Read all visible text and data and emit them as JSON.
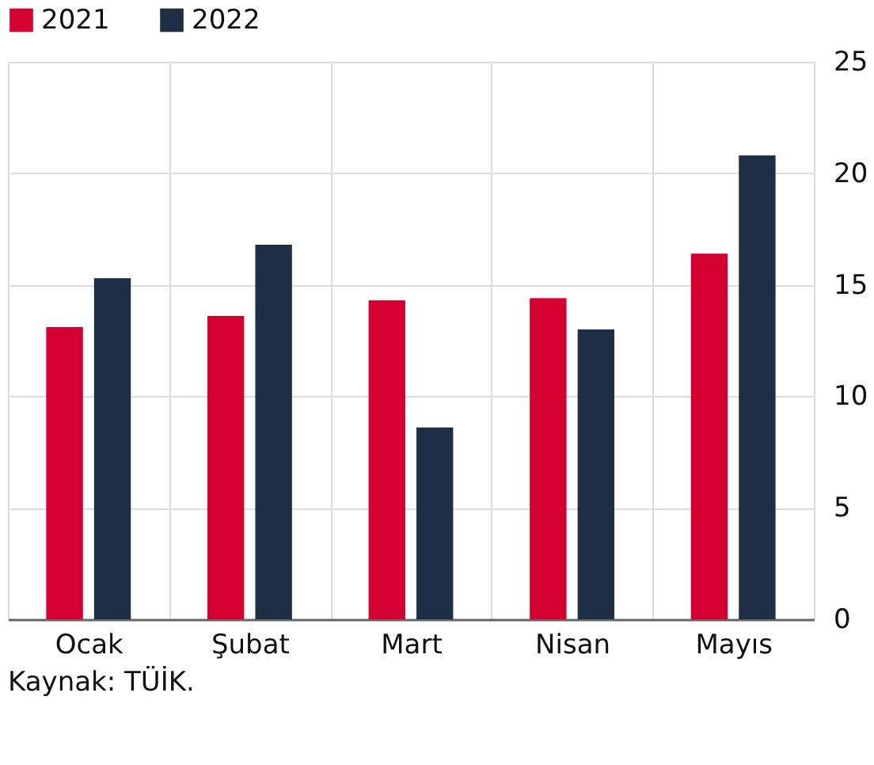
{
  "chart_data": {
    "type": "bar",
    "categories": [
      "Ocak",
      "Şubat",
      "Mart",
      "Nisan",
      "Mayıs"
    ],
    "series": [
      {
        "name": "2021",
        "color": "#d50032",
        "values": [
          13.1,
          13.6,
          14.3,
          14.4,
          16.4
        ]
      },
      {
        "name": "2022",
        "color": "#1e2f45",
        "values": [
          15.3,
          16.8,
          8.6,
          13.0,
          20.8
        ]
      }
    ],
    "ylim": [
      0,
      25
    ],
    "yticks": [
      0,
      5,
      10,
      15,
      20,
      25
    ],
    "grid": true,
    "legend": "top",
    "annotations": [
      "Kaynak: TÜİK."
    ]
  }
}
